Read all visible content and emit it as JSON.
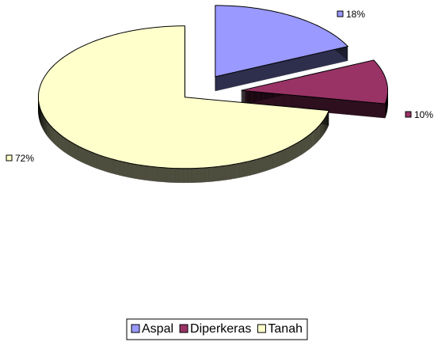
{
  "chart_data": {
    "type": "pie",
    "categories": [
      "Aspal",
      "Diperkeras",
      "Tanah"
    ],
    "values": [
      18,
      10,
      72
    ],
    "value_labels": [
      "18%",
      "10%",
      "72%"
    ],
    "colors": [
      "#9999ff",
      "#993366",
      "#ffffcc"
    ],
    "legend": "bottom"
  }
}
